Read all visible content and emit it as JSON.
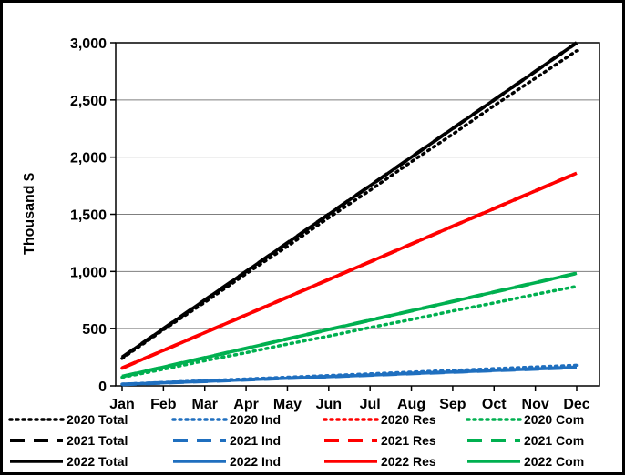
{
  "chart_data": {
    "type": "line",
    "ylabel": "Thousand $",
    "xlabel": "",
    "ylim": [
      0,
      3000
    ],
    "y_ticks": [
      0,
      500,
      1000,
      1500,
      2000,
      2500,
      3000
    ],
    "y_tick_labels": [
      "0",
      "500",
      "1,000",
      "1,500",
      "2,000",
      "2,500",
      "3,000"
    ],
    "categories": [
      "Jan",
      "Feb",
      "Mar",
      "Apr",
      "May",
      "Jun",
      "Jul",
      "Aug",
      "Sep",
      "Oct",
      "Nov",
      "Dec"
    ],
    "grid": "horizontal",
    "legend_position": "bottom",
    "series": [
      {
        "name": "2020 Total",
        "color": "#000000",
        "dash": "dot",
        "values": [
          240,
          490,
          730,
          980,
          1220,
          1470,
          1710,
          1960,
          2200,
          2450,
          2690,
          2930
        ]
      },
      {
        "name": "2020 Ind",
        "color": "#1f6fbf",
        "dash": "dot",
        "values": [
          15,
          30,
          45,
          60,
          75,
          90,
          105,
          120,
          135,
          150,
          165,
          180
        ]
      },
      {
        "name": "2020 Res",
        "color": "#ff0000",
        "dash": "dot",
        "values": [
          155,
          310,
          465,
          620,
          775,
          930,
          1085,
          1240,
          1395,
          1550,
          1705,
          1860
        ]
      },
      {
        "name": "2020 Com",
        "color": "#00b050",
        "dash": "dot",
        "values": [
          75,
          145,
          220,
          290,
          365,
          435,
          510,
          580,
          655,
          725,
          800,
          870
        ]
      },
      {
        "name": "2021 Total",
        "color": "#000000",
        "dash": "dash",
        "values": [
          250,
          500,
          750,
          1000,
          1250,
          1500,
          1750,
          2000,
          2250,
          2500,
          2750,
          3000
        ]
      },
      {
        "name": "2021 Ind",
        "color": "#1f6fbf",
        "dash": "dash",
        "values": [
          13,
          27,
          40,
          54,
          67,
          81,
          94,
          108,
          121,
          135,
          148,
          162
        ]
      },
      {
        "name": "2021 Res",
        "color": "#ff0000",
        "dash": "dash",
        "values": [
          155,
          310,
          465,
          620,
          775,
          930,
          1085,
          1240,
          1395,
          1550,
          1705,
          1860
        ]
      },
      {
        "name": "2021 Com",
        "color": "#00b050",
        "dash": "dash",
        "values": [
          82,
          164,
          246,
          328,
          410,
          492,
          574,
          656,
          738,
          820,
          902,
          984
        ]
      },
      {
        "name": "2022 Total",
        "color": "#000000",
        "dash": "solid",
        "values": [
          250,
          500,
          750,
          1000,
          1250,
          1500,
          1750,
          2000,
          2250,
          2500,
          2750,
          3000
        ]
      },
      {
        "name": "2022 Ind",
        "color": "#1f6fbf",
        "dash": "solid",
        "values": [
          13,
          27,
          40,
          54,
          67,
          81,
          94,
          108,
          121,
          135,
          148,
          162
        ]
      },
      {
        "name": "2022 Res",
        "color": "#ff0000",
        "dash": "solid",
        "values": [
          155,
          310,
          465,
          620,
          775,
          930,
          1085,
          1240,
          1395,
          1550,
          1705,
          1860
        ]
      },
      {
        "name": "2022 Com",
        "color": "#00b050",
        "dash": "solid",
        "values": [
          82,
          164,
          246,
          328,
          410,
          492,
          574,
          656,
          738,
          820,
          902,
          984
        ]
      }
    ]
  }
}
